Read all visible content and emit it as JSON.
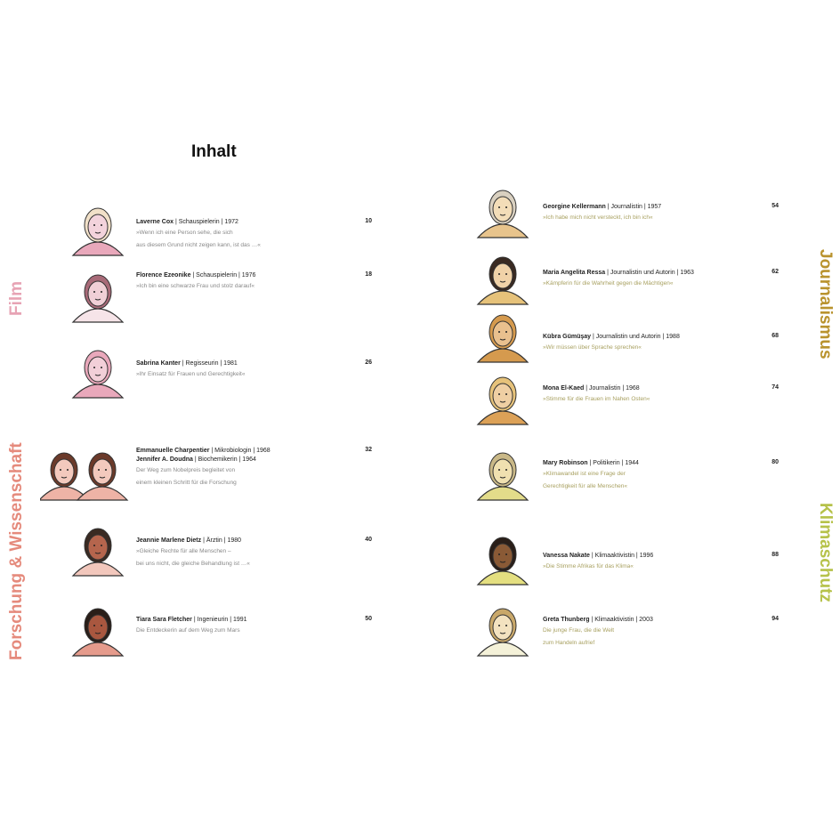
{
  "title": "Inhalt",
  "sections": {
    "film": {
      "label": "Film",
      "color": "#e7a3b4"
    },
    "science": {
      "label": "Forschung & Wissenschaft",
      "color": "#e58a7c"
    },
    "journalism": {
      "label": "Journalismus",
      "color": "#b9932e"
    },
    "climate": {
      "label": "Klimaschutz",
      "color": "#b6c24a"
    }
  },
  "left_entries": [
    {
      "name": "Laverne Cox",
      "meta": " | Schauspielerin | 1972",
      "desc": [
        "»Wenn ich eine Person sehe, die sich",
        "aus diesem Grund nicht zeigen kann, ist das …«"
      ],
      "page": "10"
    },
    {
      "name": "Florence Ezeonike",
      "meta": " | Schauspielerin | 1976",
      "desc": [
        "»Ich bin eine schwarze Frau und stolz darauf«"
      ],
      "page": "18"
    },
    {
      "name": "Sabrina Kanter",
      "meta": " | Regisseurin | 1981",
      "desc": [
        "»Ihr Einsatz für Frauen und Gerechtigkeit«"
      ],
      "page": "26"
    },
    {
      "name": "Emmanuelle Charpentier",
      "meta": " | Mikrobiologin | 1968",
      "name2": "Jennifer A. Doudna",
      "meta2": " | Biochemikerin | 1964",
      "desc": [
        "Der Weg zum Nobelpreis begleitet von",
        "einem kleinen Schritt für die Forschung"
      ],
      "page": "32"
    },
    {
      "name": "Jeannie Marlene Dietz",
      "meta": " | Ärztin | 1980",
      "desc": [
        "»Gleiche Rechte für alle Menschen –",
        "bei uns nicht, die gleiche Behandlung ist …«"
      ],
      "page": "40"
    },
    {
      "name": "Tiara Sara Fletcher",
      "meta": " | Ingenieurin | 1991",
      "desc": [
        "Die Entdeckerin auf dem Weg zum Mars"
      ],
      "page": "50"
    }
  ],
  "right_entries": [
    {
      "name": "Georgine Kellermann",
      "meta": " | Journalistin | 1957",
      "desc": [
        "»Ich habe mich nicht versteckt, ich bin ich«"
      ],
      "page": "54"
    },
    {
      "name": "Maria Angelita Ressa",
      "meta": " | Journalistin und Autorin | 1963",
      "desc": [
        "»Kämpferin für die Wahrheit gegen die Mächtigen«"
      ],
      "page": "62"
    },
    {
      "name": "Kübra Gümüşay",
      "meta": " | Journalistin und Autorin | 1988",
      "desc": [
        "»Wir müssen über Sprache sprechen«"
      ],
      "page": "68"
    },
    {
      "name": "Mona El-Kaed",
      "meta": " | Journalistin | 1968",
      "desc": [
        "»Stimme für die Frauen im Nahen Osten«"
      ],
      "page": "74"
    },
    {
      "name": "Mary Robinson",
      "meta": " | Politikerin | 1944",
      "desc": [
        "»Klimawandel ist eine Frage der",
        "Gerechtigkeit für alle Menschen«"
      ],
      "page": "80"
    },
    {
      "name": "Vanessa Nakate",
      "meta": " | Klimaaktivistin | 1996",
      "desc": [
        "»Die Stimme Afrikas für das Klima«"
      ],
      "page": "88"
    },
    {
      "name": "Greta Thunberg",
      "meta": " | Klimaaktivistin | 2003",
      "desc": [
        "Die junge Frau, die die Welt",
        "zum Handeln aufrief"
      ],
      "page": "94"
    }
  ]
}
